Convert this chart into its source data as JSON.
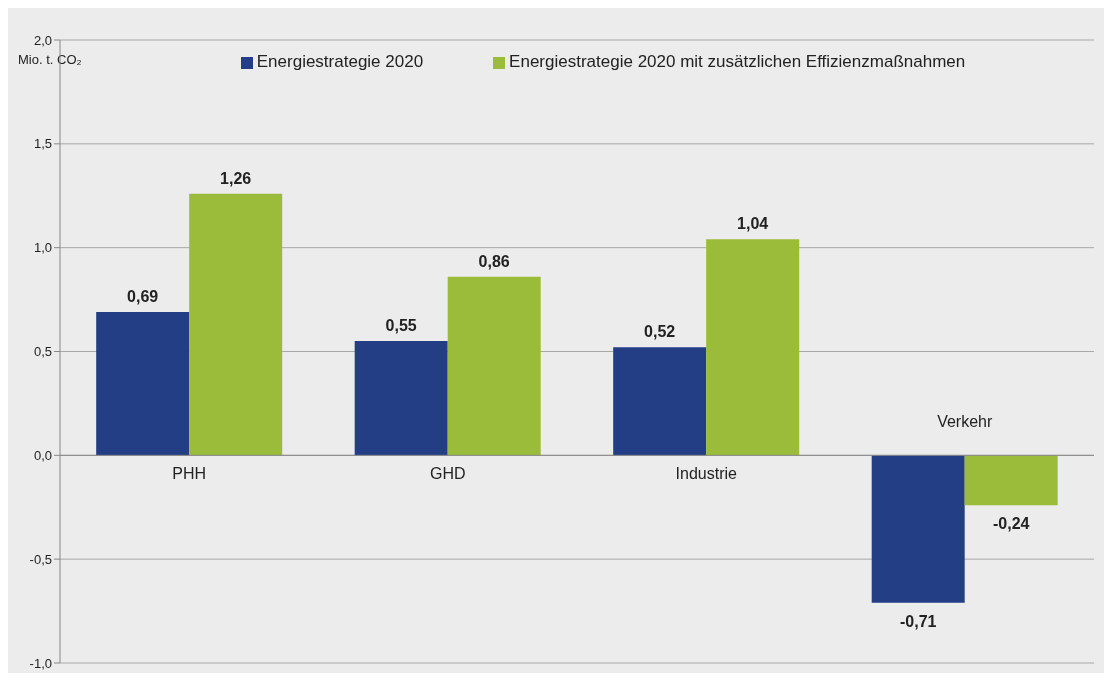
{
  "chart_data": {
    "type": "bar",
    "ylabel": "Mio. t. CO₂",
    "categories": [
      "PHH",
      "GHD",
      "Industrie",
      "Verkehr"
    ],
    "series": [
      {
        "name": "Energiestrategie 2020",
        "color": "#233e84",
        "values": [
          0.69,
          0.55,
          0.52,
          -0.71
        ],
        "value_labels": [
          "0,69",
          "0,55",
          "0,52",
          "-0,71"
        ]
      },
      {
        "name": "Energiestrategie 2020 mit zusätzlichen Effizienzmaßnahmen",
        "color": "#9bbb3b",
        "values": [
          1.26,
          0.86,
          1.04,
          -0.24
        ],
        "value_labels": [
          "1,26",
          "0,86",
          "1,04",
          "-0,24"
        ]
      }
    ],
    "ylim": [
      -1.0,
      2.0
    ],
    "yticks": [
      {
        "value": -1.0,
        "label": "-1,0"
      },
      {
        "value": -0.5,
        "label": "-0,5"
      },
      {
        "value": 0,
        "label": "0,0"
      },
      {
        "value": 0.5,
        "label": "0,5"
      },
      {
        "value": 1.0,
        "label": "1,0"
      },
      {
        "value": 1.5,
        "label": "1,5"
      },
      {
        "value": 2.0,
        "label": "2,0"
      }
    ],
    "grid": "y",
    "legend": "top"
  }
}
